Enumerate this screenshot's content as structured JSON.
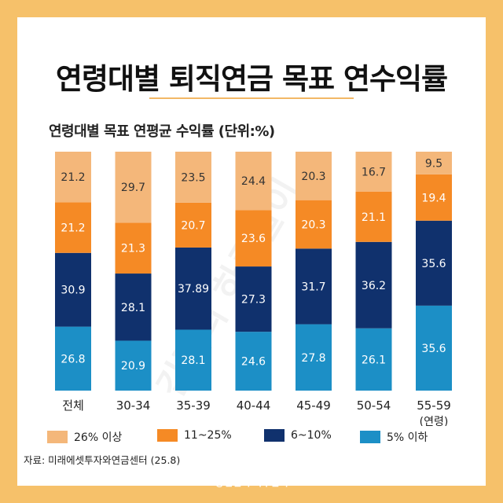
{
  "title": "연령대별 퇴직연금 목표 연수익률",
  "subtitle": "연령대별 목표 연평균 수익률 (단위:%)",
  "watermark": "김캡의 하루살이",
  "source": "자료: 미래에셋투자와연금센터 (25.8)",
  "brand": "@킴캡의 하루살이",
  "colors": {
    "frame": "#F6C16A",
    "above26": "#F4B77A",
    "11to25": "#F58A25",
    "6to10": "#10316D",
    "below5": "#1C8FC6"
  },
  "chart_data": {
    "type": "bar",
    "stacked": true,
    "normalized_to": 100,
    "categories": [
      "전체",
      "30-34",
      "35-39",
      "40-44",
      "45-49",
      "50-54",
      "55-59"
    ],
    "category_note": "(연령)",
    "series": [
      {
        "name": "5% 이하",
        "color": "#1C8FC6",
        "values": [
          26.8,
          20.9,
          28.1,
          24.6,
          27.8,
          26.1,
          35.6
        ]
      },
      {
        "name": "6~10%",
        "color": "#10316D",
        "values": [
          30.9,
          28.1,
          37.89,
          27.3,
          31.7,
          36.2,
          35.6
        ]
      },
      {
        "name": "11~25%",
        "color": "#F58A25",
        "values": [
          21.2,
          21.3,
          20.7,
          23.6,
          20.3,
          21.1,
          19.4
        ]
      },
      {
        "name": "26% 이상",
        "color": "#F4B77A",
        "values": [
          21.2,
          29.7,
          23.5,
          24.4,
          20.3,
          16.7,
          9.5
        ]
      }
    ],
    "legend_order": [
      "26% 이상",
      "11~25%",
      "6~10%",
      "5% 이하"
    ],
    "legend_position": "bottom"
  }
}
